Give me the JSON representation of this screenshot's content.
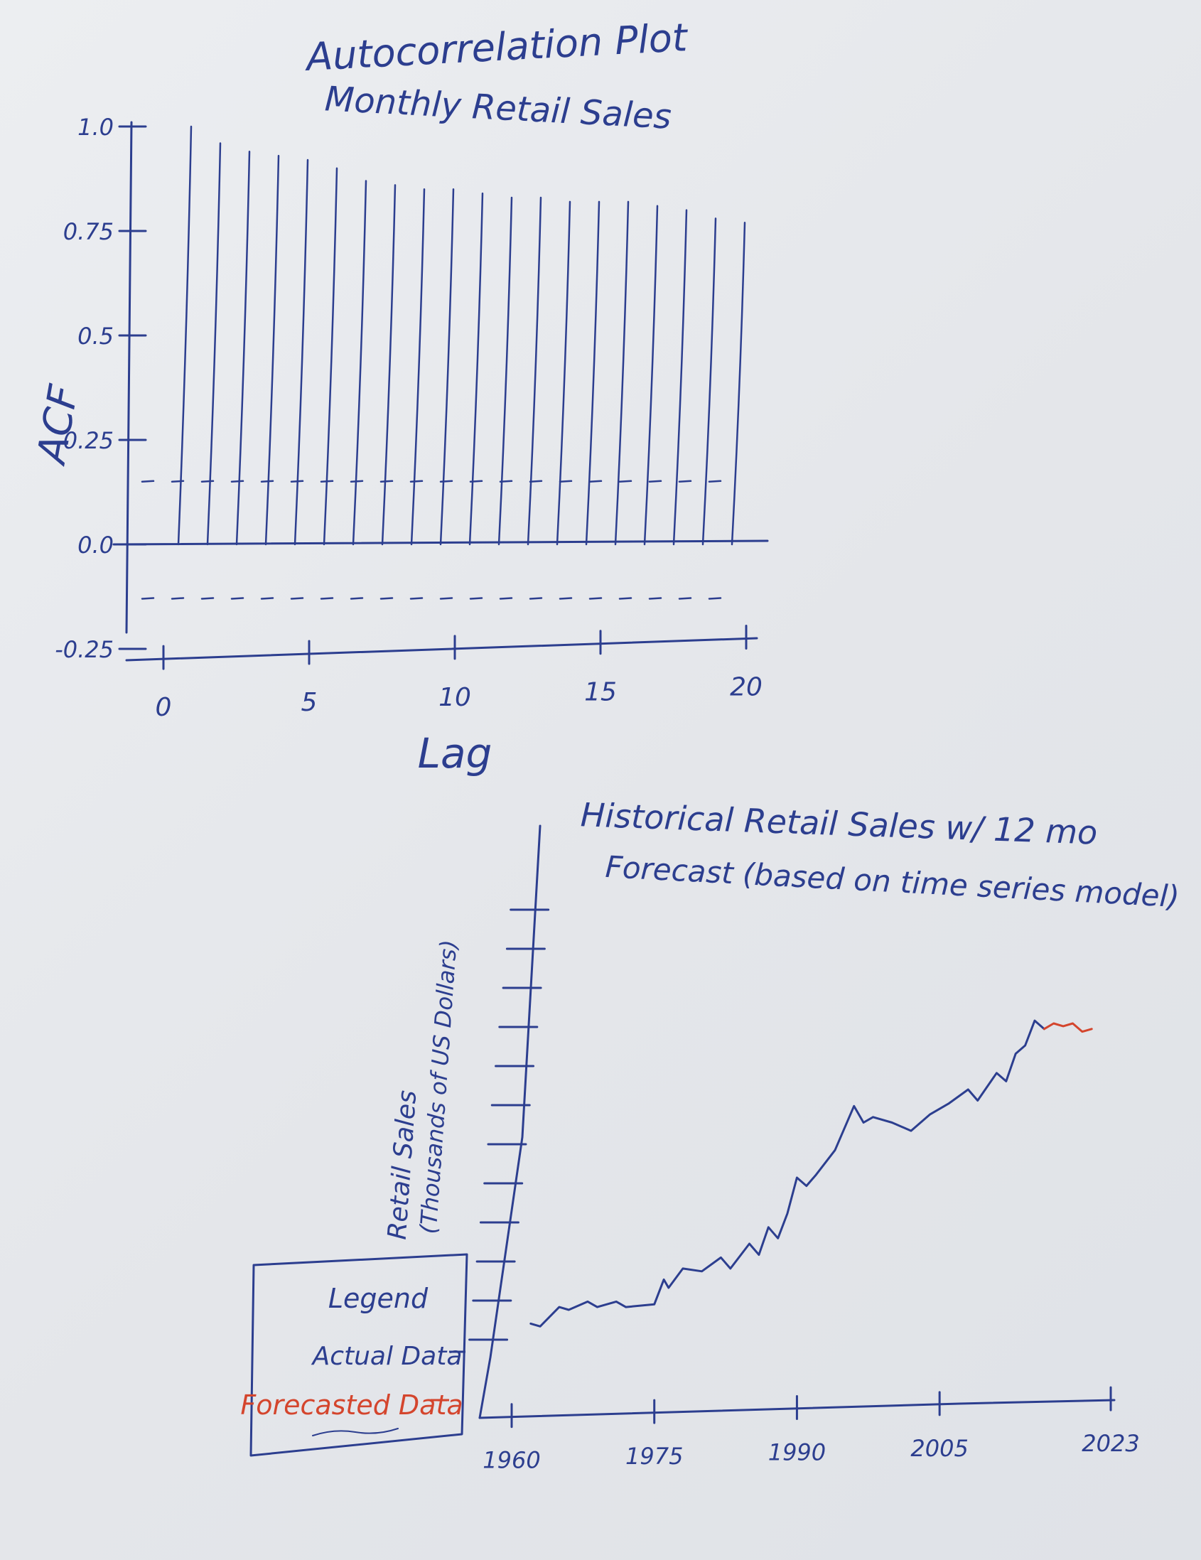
{
  "chart_data": [
    {
      "type": "bar",
      "title": "Autocorrelation Plot",
      "subtitle": "Monthly Retail Sales",
      "xlabel": "Lag",
      "ylabel": "ACF",
      "xlim": [
        0,
        20
      ],
      "ylim": [
        -0.25,
        1.0
      ],
      "x_ticks": [
        0,
        5,
        10,
        15,
        20
      ],
      "x_tick_labels": [
        "0",
        "5",
        "10",
        "15",
        "20"
      ],
      "y_ticks": [
        1.0,
        0.75,
        0.5,
        0.25,
        0.0,
        -0.25
      ],
      "y_tick_labels": [
        "1.0",
        "0.75",
        "0.5",
        "0.25",
        "0.0",
        "-0.25"
      ],
      "lags": [
        1,
        2,
        3,
        4,
        5,
        6,
        7,
        8,
        9,
        10,
        11,
        12,
        13,
        14,
        15,
        16,
        17,
        18,
        19,
        20
      ],
      "values": [
        1.0,
        0.96,
        0.94,
        0.93,
        0.92,
        0.9,
        0.87,
        0.86,
        0.85,
        0.85,
        0.84,
        0.83,
        0.83,
        0.82,
        0.82,
        0.82,
        0.81,
        0.8,
        0.78,
        0.77
      ],
      "confidence_band": [
        -0.13,
        0.15
      ]
    },
    {
      "type": "line",
      "title": "Historical Retail Sales w/ 12 mo",
      "subtitle": "Forecast (based on time series model)",
      "ylabel_lines": [
        "Retail Sales",
        "(Thousands of US Dollars)"
      ],
      "xlim": [
        1960,
        2023
      ],
      "x_ticks": [
        1960,
        1975,
        1990,
        2005,
        2023
      ],
      "x_tick_labels": [
        "1960",
        "1975",
        "1990",
        "2005",
        "2023"
      ],
      "y_tick_count": 12,
      "ylim": [
        0,
        10
      ],
      "series": [
        {
          "name": "Actual Data",
          "color": "#2c3e8f",
          "x": [
            1962,
            1963,
            1965,
            1966,
            1968,
            1969,
            1971,
            1972,
            1975,
            1976,
            1976.5,
            1978,
            1980,
            1982,
            1983,
            1985,
            1986,
            1987,
            1988,
            1989,
            1990,
            1991,
            1992,
            1994,
            1996,
            1997,
            1998,
            2000,
            2002,
            2004,
            2006,
            2008,
            2009,
            2011,
            2012,
            2013,
            2014,
            2015,
            2016
          ],
          "y": [
            0.55,
            0.5,
            0.85,
            0.8,
            0.95,
            0.85,
            0.95,
            0.85,
            0.9,
            1.35,
            1.2,
            1.55,
            1.5,
            1.75,
            1.55,
            2.0,
            1.8,
            2.3,
            2.1,
            2.55,
            3.2,
            3.05,
            3.25,
            3.7,
            4.5,
            4.2,
            4.3,
            4.2,
            4.05,
            4.35,
            4.55,
            4.8,
            4.6,
            5.1,
            4.95,
            5.45,
            5.6,
            6.05,
            5.9
          ]
        },
        {
          "name": "Forecasted Data",
          "color": "#d4452d",
          "x": [
            2016,
            2017,
            2018,
            2019,
            2020,
            2021
          ],
          "y": [
            5.9,
            6.0,
            5.95,
            6.0,
            5.85,
            5.9
          ]
        }
      ],
      "legend": {
        "title": "Legend",
        "entries": [
          {
            "label": "Actual Data",
            "color": "#2c3e8f"
          },
          {
            "label": "Forecasted Data",
            "color": "#d4452d"
          }
        ]
      }
    }
  ]
}
